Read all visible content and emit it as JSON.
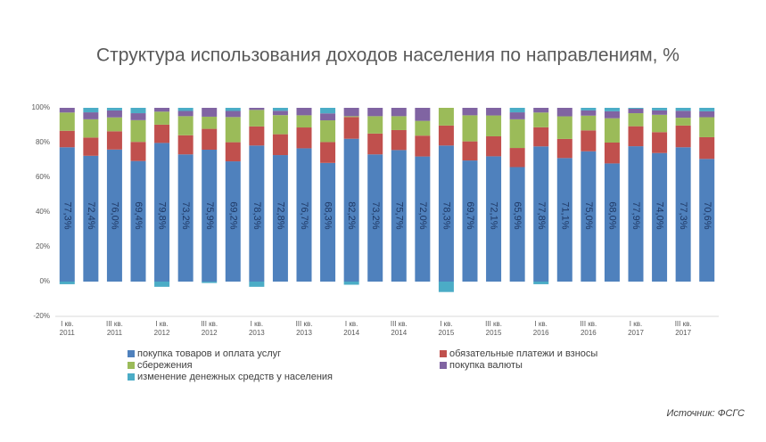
{
  "chart_data": {
    "type": "stacked_bar",
    "title": "Структура использования доходов населения по направлениям, %",
    "categories": [
      "I кв. 2011",
      null,
      "III кв. 2011",
      null,
      "I кв. 2012",
      null,
      "III кв. 2012",
      null,
      "I кв. 2013",
      null,
      "III кв. 2013",
      null,
      "I кв. 2014",
      null,
      "III кв. 2014",
      null,
      "I кв. 2015",
      null,
      "III кв. 2015",
      null,
      "I кв. 2016",
      null,
      "III кв. 2016",
      null,
      "I кв. 2017",
      null,
      "III кв. 2017",
      null
    ],
    "series": [
      {
        "name": "покупка товаров и оплата услуг",
        "color": "#4f81bd",
        "values": [
          77.3,
          72.4,
          76.0,
          69.4,
          79.8,
          73.2,
          75.9,
          69.2,
          78.3,
          72.8,
          76.7,
          68.3,
          82.2,
          73.2,
          75.7,
          72.0,
          78.3,
          69.7,
          72.1,
          65.9,
          77.8,
          71.1,
          75.0,
          68.0,
          77.9,
          74.0,
          77.3,
          70.6
        ],
        "value_labels": [
          "77,3%",
          "72,4%",
          "76,0%",
          "69,4%",
          "79,8%",
          "73,2%",
          "75,9%",
          "69,2%",
          "78,3%",
          "72,8%",
          "76,7%",
          "68,3%",
          "82,2%",
          "73,2%",
          "75,7%",
          "72,0%",
          "78,3%",
          "69,7%",
          "72,1%",
          "65,9%",
          "77,8%",
          "71,1%",
          "75,0%",
          "68,0%",
          "77,9%",
          "74,0%",
          "77,3%",
          "70,6%"
        ]
      },
      {
        "name": "обязательные платежи и взносы",
        "color": "#c0504d",
        "values": [
          9.5,
          10.5,
          10.5,
          11.0,
          10.5,
          11.0,
          12.0,
          11.0,
          11.0,
          12.0,
          12.0,
          12.0,
          12.5,
          12.0,
          11.5,
          12.0,
          11.5,
          11.0,
          11.5,
          11.0,
          11.0,
          11.0,
          12.0,
          12.0,
          11.5,
          12.0,
          12.5,
          12.5
        ]
      },
      {
        "name": "сбережения",
        "color": "#9bbb59",
        "values": [
          10.5,
          10.5,
          8.0,
          12.5,
          7.5,
          11.0,
          7.0,
          14.5,
          9.5,
          11.0,
          7.0,
          12.5,
          0.5,
          10.0,
          8.0,
          8.5,
          10.2,
          15.0,
          12.0,
          16.5,
          8.5,
          13.0,
          8.5,
          14.0,
          7.5,
          10.0,
          4.5,
          11.5
        ]
      },
      {
        "name": "покупка валюты",
        "color": "#8064a2",
        "values": [
          2.7,
          4.0,
          4.0,
          4.0,
          2.2,
          3.0,
          5.1,
          3.5,
          1.2,
          2.5,
          4.3,
          4.0,
          4.8,
          4.8,
          4.8,
          7.5,
          0,
          4.3,
          4.4,
          4.0,
          2.7,
          4.9,
          3.0,
          4.0,
          2.6,
          2.5,
          4.0,
          3.4
        ]
      },
      {
        "name": "изменение денежных средств у населения",
        "color": "#4bacc6",
        "values": [
          -1.5,
          2.6,
          1.5,
          3.1,
          -3.0,
          1.8,
          -0.8,
          1.8,
          -3.0,
          1.7,
          0,
          3.2,
          -1.8,
          0,
          0,
          0,
          -6.0,
          0,
          0,
          2.6,
          -1.5,
          0,
          1.5,
          2.0,
          0.5,
          1.5,
          1.7,
          2.0
        ]
      }
    ],
    "ylim": [
      -20,
      100
    ],
    "yticks": [
      {
        "value": -20,
        "label": "-20%"
      },
      {
        "value": 0,
        "label": "0%"
      },
      {
        "value": 20,
        "label": "20%"
      },
      {
        "value": 40,
        "label": "40%"
      },
      {
        "value": 60,
        "label": "60%"
      },
      {
        "value": 80,
        "label": "80%"
      },
      {
        "value": 100,
        "label": "100%"
      }
    ],
    "grid": false,
    "source": "Источник:  ФСГС"
  }
}
